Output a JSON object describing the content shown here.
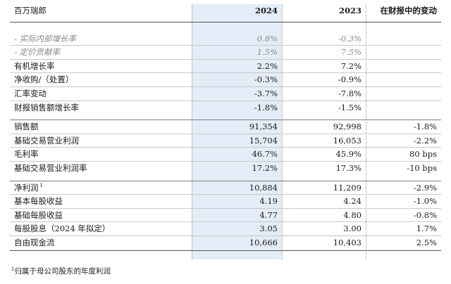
{
  "header": {
    "unit": "百万瑞郎",
    "col_2024": "2024",
    "col_2023": "2023",
    "col_change": "在财报中的变动"
  },
  "group1": [
    {
      "label": "- 实际内部增长率",
      "v2024": "0.8%",
      "v2023": "-0.3%",
      "change": "",
      "muted": true
    },
    {
      "label": "- 定价贡献率",
      "v2024": "1.5%",
      "v2023": "7.5%",
      "change": "",
      "muted": true
    },
    {
      "label": "有机增长率",
      "v2024": "2.2%",
      "v2023": "7.2%",
      "change": ""
    },
    {
      "label": "净收购/（处置）",
      "v2024": "-0.3%",
      "v2023": "-0.9%",
      "change": ""
    },
    {
      "label": "汇率变动",
      "v2024": "-3.7%",
      "v2023": "-7.8%",
      "change": ""
    },
    {
      "label": "财报销售额增长率",
      "v2024": "-1.8%",
      "v2023": "-1.5%",
      "change": ""
    }
  ],
  "group2": [
    {
      "label": "销售额",
      "v2024": "91,354",
      "v2023": "92,998",
      "change": "-1.8%"
    },
    {
      "label": "基础交易营业利润",
      "v2024": "15,704",
      "v2023": "16,053",
      "change": "-2.2%"
    },
    {
      "label": "毛利率",
      "v2024": "46.7%",
      "v2023": "45.9%",
      "change": "80 bps"
    },
    {
      "label": "基础交易营业利润率",
      "v2024": "17.2%",
      "v2023": "17.3%",
      "change": "-10 bps"
    }
  ],
  "group3": [
    {
      "label": "净利润",
      "sup": "1",
      "v2024": "10,884",
      "v2023": "11,209",
      "change": "-2.9%"
    },
    {
      "label": "基本每股收益",
      "v2024": "4.19",
      "v2023": "4.24",
      "change": "-1.0%"
    },
    {
      "label": "基础每股收益",
      "v2024": "4.77",
      "v2023": "4.80",
      "change": "-0.8%"
    },
    {
      "label": "每股股息（2024 年拟定）",
      "v2024": "3.05",
      "v2023": "3.00",
      "change": "1.7%"
    },
    {
      "label": "自由现金流",
      "v2024": "10,666",
      "v2023": "10,403",
      "change": "2.5%"
    }
  ],
  "footnote": {
    "marker": "1",
    "text": "归属于母公司股东的年度利润"
  }
}
